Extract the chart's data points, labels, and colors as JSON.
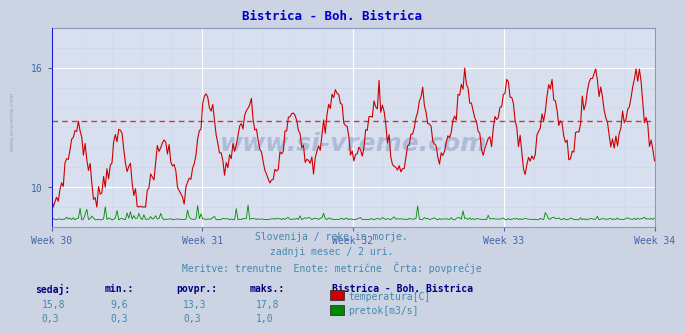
{
  "title": "Bistrica - Boh. Bistrica",
  "title_color": "#0000cc",
  "bg_color": "#ccd4e4",
  "plot_bg_color": "#d8e0f0",
  "grid_color_major": "#ffffff",
  "grid_color_minor": "#c0c8dc",
  "x_tick_labels": [
    "Week 30",
    "Week 31",
    "Week 32",
    "Week 33",
    "Week 34"
  ],
  "x_tick_positions": [
    0,
    84,
    168,
    252,
    336
  ],
  "y_min": 8.0,
  "y_max": 18.0,
  "y_ticks": [
    10,
    16
  ],
  "avg_temp": 13.3,
  "temp_color": "#cc0000",
  "flow_color": "#008800",
  "avg_line_color": "#cc0000",
  "subtitle1": "Slovenija / reke in morje.",
  "subtitle2": "zadnji mesec / 2 uri.",
  "subtitle3": "Meritve: trenutne  Enote: metrične  Črta: povprečje",
  "subtitle_color": "#4488aa",
  "legend_title": "Bistrica - Boh. Bistrica",
  "legend_items": [
    "temperatura[C]",
    "pretok[m3/s]"
  ],
  "legend_colors": [
    "#cc0000",
    "#008800"
  ],
  "table_headers": [
    "sedaj:",
    "min.:",
    "povpr.:",
    "maks.:"
  ],
  "table_row1": [
    "15,8",
    "9,6",
    "13,3",
    "17,8"
  ],
  "table_row2": [
    "0,3",
    "0,3",
    "0,3",
    "1,0"
  ],
  "table_bold_color": "#000080",
  "watermark_color": "#8899bb",
  "axis_color": "#8899bb",
  "tick_color": "#4466aa",
  "n_points": 360,
  "flow_max": 1.0,
  "flow_display_scale": 0.12
}
